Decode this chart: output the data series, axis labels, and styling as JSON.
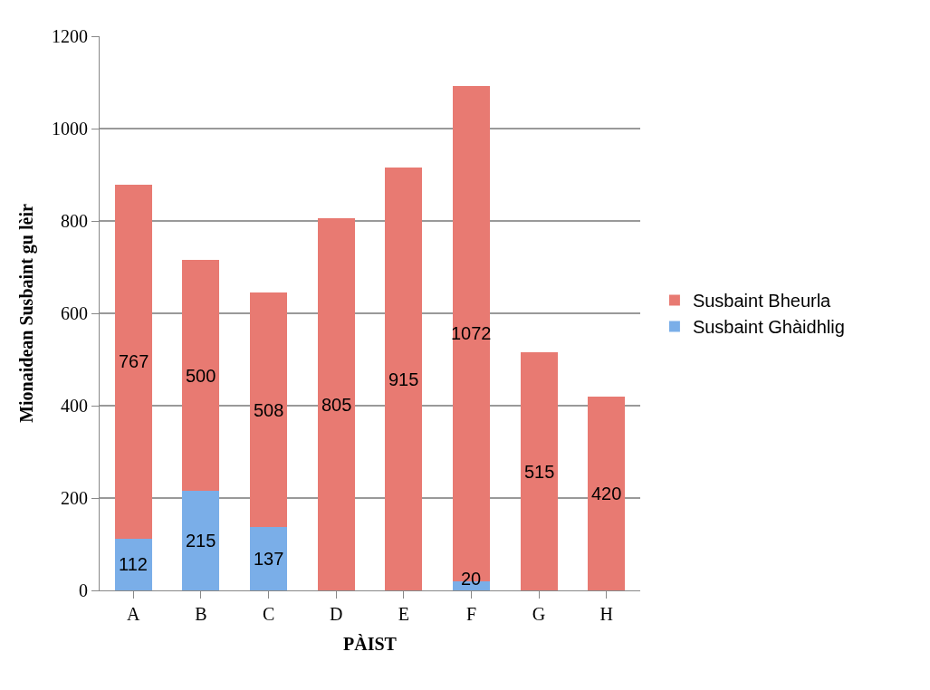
{
  "chart_data": {
    "type": "bar",
    "stacked": true,
    "xlabel": "PÀIST",
    "ylabel": "Mionaidean Susbaint gu lèir",
    "categories": [
      "A",
      "B",
      "C",
      "D",
      "E",
      "F",
      "G",
      "H"
    ],
    "series": [
      {
        "name": "Susbaint Ghàidhlig",
        "color": "#7aaee8",
        "values": [
          112,
          215,
          137,
          null,
          null,
          20,
          null,
          null
        ]
      },
      {
        "name": "Susbaint Bheurla",
        "color": "#e87a72",
        "values": [
          767,
          500,
          508,
          805,
          915,
          1072,
          515,
          420
        ]
      }
    ],
    "ylim": [
      0,
      1200
    ],
    "yticks": [
      0,
      200,
      400,
      600,
      800,
      1000,
      1200
    ],
    "grid": "y",
    "legend": "right",
    "data_labels": true
  }
}
